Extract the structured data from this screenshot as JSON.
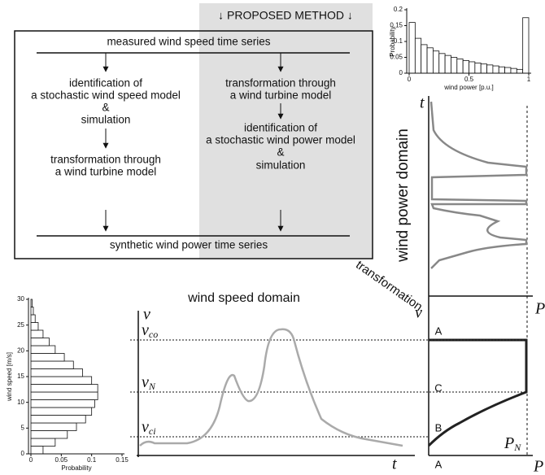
{
  "flowchart": {
    "header": "↓ PROPOSED METHOD ↓",
    "input": "measured wind speed time series",
    "output": "synthetic wind power time series",
    "left_path": [
      [
        "identification of",
        "a stochastic wind speed model",
        "&",
        "simulation"
      ],
      [
        "transformation through",
        "a wind turbine model"
      ]
    ],
    "right_path": [
      [
        "transformation through",
        "a wind turbine model"
      ],
      [
        "identification of",
        "a stochastic wind power model",
        "&",
        "simulation"
      ]
    ]
  },
  "power_domain": {
    "title": "wind power domain",
    "axis_y": "t",
    "axis_x": "P"
  },
  "speed_domain": {
    "title": "wind speed domain",
    "axis_y": "v",
    "axis_x": "t",
    "levels": [
      {
        "symbol": "v",
        "sub": "co"
      },
      {
        "symbol": "v",
        "sub": "N"
      },
      {
        "symbol": "v",
        "sub": "ci"
      }
    ]
  },
  "transformation": {
    "label": "transformation",
    "axis_y": "v",
    "axis_x": "P",
    "rated": {
      "symbol": "P",
      "sub": "N"
    },
    "regions": [
      "A",
      "C",
      "B",
      "A"
    ]
  },
  "chart_data": [
    {
      "type": "histogram",
      "orientation": "vertical",
      "xlabel": "wind power [p.u.]",
      "ylabel": "Probability",
      "color": "#ffffff",
      "bins": [
        0,
        0.05,
        0.1,
        0.15,
        0.2,
        0.25,
        0.3,
        0.35,
        0.4,
        0.45,
        0.5,
        0.55,
        0.6,
        0.65,
        0.7,
        0.75,
        0.8,
        0.85,
        0.9,
        0.95,
        1
      ],
      "values": [
        0.16,
        0.11,
        0.09,
        0.08,
        0.07,
        0.062,
        0.056,
        0.05,
        0.045,
        0.04,
        0.036,
        0.032,
        0.029,
        0.026,
        0.023,
        0.02,
        0.018,
        0.015,
        0.012,
        0.175
      ],
      "xlim": [
        0,
        1
      ],
      "ylim": [
        0,
        0.2
      ],
      "xticks": [
        0,
        0.5,
        1
      ],
      "yticks": [
        0,
        0.05,
        0.1,
        0.15,
        0.2
      ]
    },
    {
      "type": "histogram",
      "orientation": "horizontal",
      "xlabel": "Probability",
      "ylabel": "wind speed [m/s]",
      "color": "#ffffff",
      "bins": [
        0,
        1.5,
        3,
        4.5,
        6,
        7.5,
        9,
        10.5,
        12,
        13.5,
        15,
        16.5,
        18,
        19.5,
        21,
        22.5,
        24,
        25.5,
        27,
        28.5,
        30
      ],
      "values": [
        0.02,
        0.04,
        0.06,
        0.075,
        0.09,
        0.1,
        0.105,
        0.11,
        0.11,
        0.1,
        0.085,
        0.07,
        0.055,
        0.04,
        0.03,
        0.02,
        0.012,
        0.007,
        0.004,
        0.002
      ],
      "xlim": [
        0,
        0.15
      ],
      "ylim": [
        0,
        30
      ],
      "xticks": [
        0,
        0.05,
        0.1,
        0.15
      ],
      "yticks": [
        0,
        5,
        10,
        15,
        20,
        25,
        30
      ]
    }
  ]
}
